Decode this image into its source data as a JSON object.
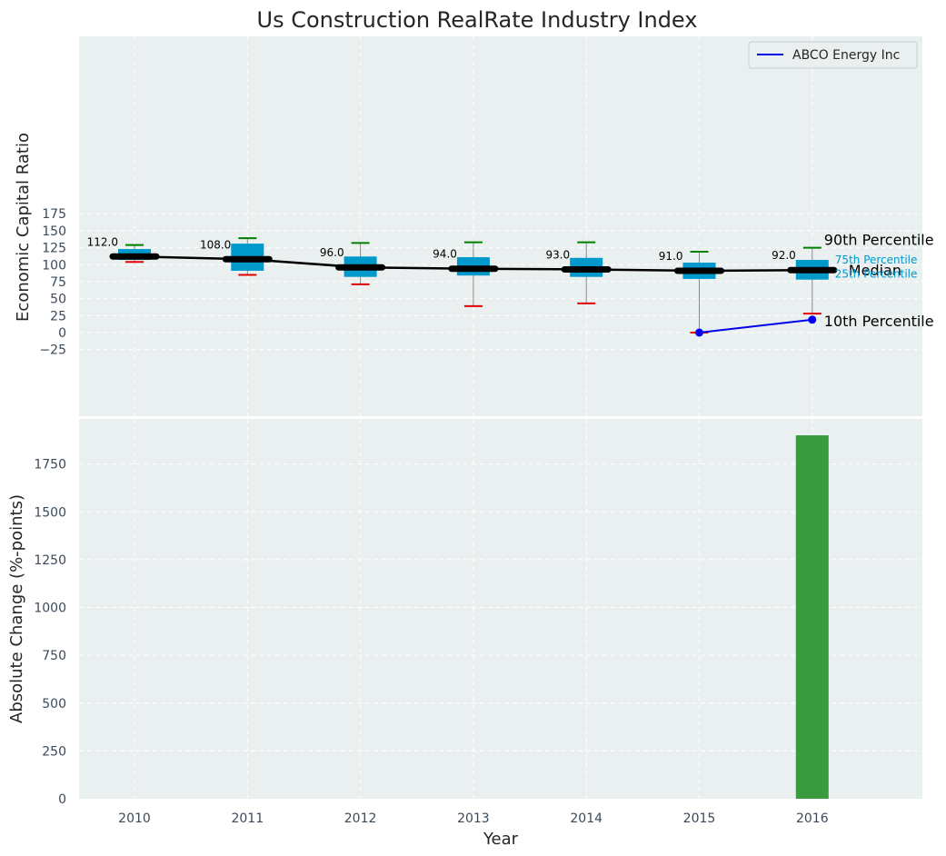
{
  "chart_data": [
    {
      "type": "box",
      "title": "Us Construction RealRate Industry Index",
      "ylabel": "Economic Capital Ratio",
      "ylim": [
        -50,
        175
      ],
      "yticks": [
        -25,
        0,
        25,
        50,
        75,
        100,
        125,
        150,
        175
      ],
      "grid": true,
      "legend_position": "top-right",
      "categories": [
        "2010",
        "2011",
        "2012",
        "2013",
        "2014",
        "2015",
        "2016"
      ],
      "boxes": [
        {
          "year": "2010",
          "p10": 104,
          "p25": 107,
          "median": 112,
          "p75": 123,
          "p90": 129
        },
        {
          "year": "2011",
          "p10": 85,
          "p25": 91,
          "median": 108,
          "p75": 131,
          "p90": 139
        },
        {
          "year": "2012",
          "p10": 71,
          "p25": 82,
          "median": 96,
          "p75": 112,
          "p90": 132
        },
        {
          "year": "2013",
          "p10": 39,
          "p25": 84,
          "median": 94,
          "p75": 111,
          "p90": 133
        },
        {
          "year": "2014",
          "p10": 43,
          "p25": 82,
          "median": 93,
          "p75": 110,
          "p90": 133
        },
        {
          "year": "2015",
          "p10": 0,
          "p25": 79,
          "median": 91,
          "p75": 103,
          "p90": 119
        },
        {
          "year": "2016",
          "p10": 28,
          "p25": 78,
          "median": 92,
          "p75": 107,
          "p90": 125
        }
      ],
      "median_labels": [
        "112.0",
        "108.0",
        "96.0",
        "94.0",
        "93.0",
        "91.0",
        "92.0"
      ],
      "series": [
        {
          "name": "ABCO Energy Inc",
          "x": [
            "2015",
            "2016"
          ],
          "values": [
            0,
            19
          ],
          "color": "#0000ee"
        }
      ],
      "annotations": {
        "p90": "90th Percentile",
        "p75": "75th Percentile",
        "median": "Median",
        "p25": "25th Percentile",
        "p10": "10th Percentile"
      }
    },
    {
      "type": "bar",
      "xlabel": "Year",
      "ylabel": "Absolute Change (%-points)",
      "ylim": [
        0,
        2000
      ],
      "yticks": [
        0,
        250,
        500,
        750,
        1000,
        1250,
        1500,
        1750
      ],
      "grid": true,
      "categories": [
        "2010",
        "2011",
        "2012",
        "2013",
        "2014",
        "2015",
        "2016"
      ],
      "values": [
        null,
        null,
        null,
        null,
        null,
        null,
        1900
      ],
      "color": "#3a9a3e"
    }
  ],
  "colors": {
    "panel_bg": "#eaeff0",
    "box": "#0099cc",
    "median_line": "#000000",
    "whisker_p90": "#008000",
    "whisker_p10": "#e00000",
    "whisker_stem": "#8a8a8a"
  }
}
